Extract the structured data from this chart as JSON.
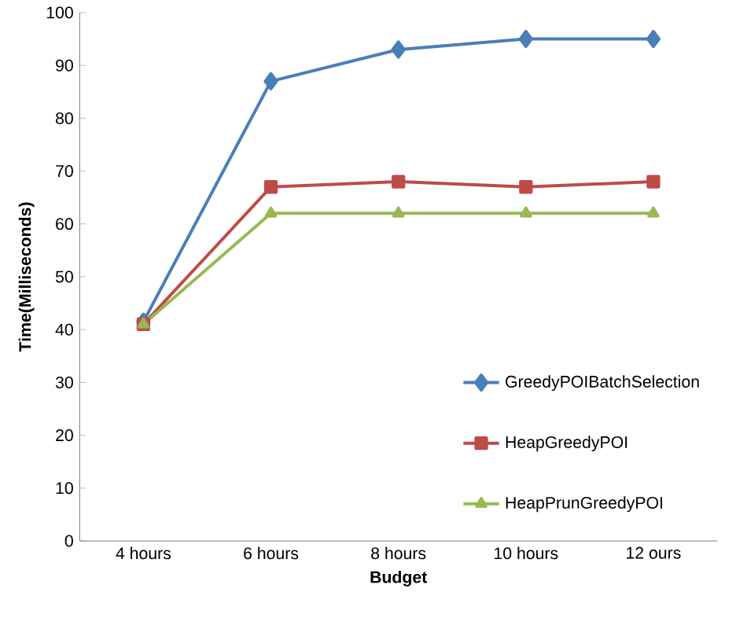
{
  "chart_data": {
    "type": "line",
    "xlabel": "Budget",
    "ylabel": "Time(Milliseconds)",
    "categories": [
      "4 hours",
      "6 hours",
      "8 hours",
      "10 hours",
      "12 ours"
    ],
    "series": [
      {
        "name": "GreedyPOIBatchSelection",
        "color": "#4a7ebb",
        "marker": "diamond",
        "values": [
          41.5,
          87,
          93,
          95,
          95
        ]
      },
      {
        "name": "HeapGreedyPOI",
        "color": "#be4b48",
        "marker": "square",
        "values": [
          41,
          67,
          68,
          67,
          68
        ]
      },
      {
        "name": "HeapPrunGreedyPOI",
        "color": "#98b954",
        "marker": "triangle",
        "values": [
          41,
          62,
          62,
          62,
          62
        ]
      }
    ],
    "ylim": [
      0,
      100
    ],
    "yticks": [
      0,
      10,
      20,
      30,
      40,
      50,
      60,
      70,
      80,
      90,
      100
    ],
    "grid": false,
    "legend": "bottom right",
    "line_style": "solid"
  }
}
